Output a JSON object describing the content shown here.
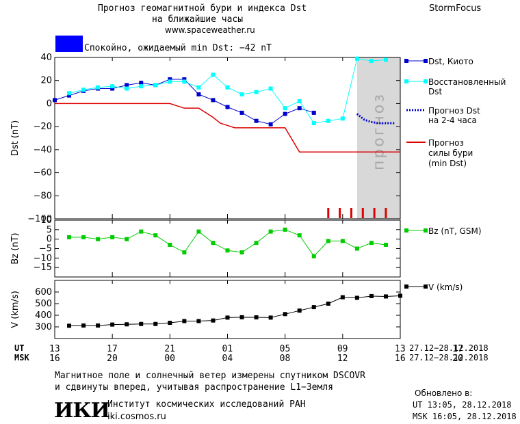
{
  "header": {
    "title_line1": "Прогноз геомагнитной бури и индекса Dst",
    "title_line2": "на ближайшие часы",
    "site": "www.spaceweather.ru",
    "brand": "StormFocus"
  },
  "status": {
    "color": "#0000ff",
    "text": "Спокойно, ожидаемый min Dst: −42 nT"
  },
  "chart_data": [
    {
      "type": "line",
      "name": "dst-panel",
      "ylabel": "Dst (nT)",
      "ylim": [
        -100,
        40
      ],
      "yticks": [
        40,
        20,
        0,
        -20,
        -40,
        -60,
        -80,
        -100
      ],
      "xlim": [
        13,
        37
      ],
      "forecast_region": {
        "x0": 34,
        "x1": 37,
        "label": "прогноз",
        "color": "#d8d8d8"
      },
      "series": [
        {
          "name": "Dst, Киото",
          "color": "#0000cc",
          "style": "line-square",
          "x": [
            13,
            14,
            15,
            16,
            17,
            18,
            19,
            20,
            21,
            22,
            23,
            24,
            25,
            26,
            27,
            28,
            29,
            30,
            31,
            32
          ],
          "y": [
            3,
            7,
            11,
            13,
            13,
            16,
            18,
            16,
            21,
            21,
            8,
            3,
            -3,
            -8,
            -15,
            -18,
            -9,
            -4,
            -8,
            null
          ]
        },
        {
          "name": "Восстановленный Dst",
          "color": "#00ffff",
          "style": "line-square",
          "x": [
            14,
            15,
            16,
            17,
            18,
            19,
            20,
            21,
            22,
            23,
            24,
            25,
            26,
            27,
            28,
            29,
            30,
            31,
            32,
            33,
            34,
            35,
            36
          ],
          "y": [
            9,
            12,
            14,
            15,
            13,
            15,
            16,
            19,
            19,
            14,
            25,
            14,
            8,
            10,
            13,
            -4,
            2,
            -17,
            -15,
            -13,
            39,
            37,
            38
          ]
        },
        {
          "name": "Прогноз Dst на 2-4 часа",
          "color": "#0000cc",
          "style": "dotted",
          "x": [
            34,
            34.5,
            35,
            35.5,
            36,
            36.6
          ],
          "y": [
            -9,
            -14,
            -16,
            -17,
            -17,
            -17
          ]
        },
        {
          "name": "Прогноз силы бури (min Dst)",
          "color": "#dd0000",
          "style": "step",
          "x": [
            13,
            21,
            21.5,
            22,
            23,
            24,
            24.5,
            25,
            25.5,
            27,
            28,
            29,
            30,
            31,
            37
          ],
          "y": [
            0,
            0,
            -2,
            -4,
            -4,
            -12,
            -17,
            -19,
            -21,
            -21,
            -21,
            -21,
            -42,
            -42,
            -42
          ]
        }
      ],
      "markers": {
        "color": "#dd0000",
        "x": [
          32,
          32.8,
          33.6,
          34.4,
          35.2,
          36
        ]
      }
    },
    {
      "type": "line",
      "name": "bz-panel",
      "ylabel": "Bz (nT)",
      "ylim": [
        -20,
        10
      ],
      "yticks": [
        10,
        5,
        0,
        -5,
        -10,
        -15
      ],
      "xlim": [
        13,
        37
      ],
      "series": [
        {
          "name": "Bz (nT, GSM)",
          "color": "#00cc00",
          "style": "line-square",
          "x": [
            14,
            15,
            16,
            17,
            18,
            19,
            20,
            21,
            22,
            23,
            24,
            25,
            26,
            27,
            28,
            29,
            30,
            31,
            32,
            33,
            34,
            35,
            36
          ],
          "y": [
            1,
            1,
            0,
            1,
            0,
            4,
            2,
            -3,
            -7,
            4,
            -2,
            -6,
            -7,
            -2,
            4,
            5,
            2,
            -9,
            -1,
            -1,
            -5,
            -2,
            -3
          ]
        }
      ]
    },
    {
      "type": "line",
      "name": "v-panel",
      "ylabel": "V (km/s)",
      "ylim": [
        200,
        700
      ],
      "yticks": [
        600,
        500,
        400,
        300
      ],
      "xlim": [
        13,
        37
      ],
      "series": [
        {
          "name": "V (km/s)",
          "color": "#000000",
          "style": "line-square",
          "x": [
            14,
            15,
            16,
            17,
            18,
            19,
            20,
            21,
            22,
            23,
            24,
            25,
            26,
            27,
            28,
            29,
            30,
            31,
            32,
            33,
            34,
            35,
            36,
            37
          ],
          "y": [
            310,
            312,
            312,
            320,
            322,
            325,
            325,
            335,
            350,
            350,
            355,
            380,
            383,
            382,
            380,
            410,
            440,
            470,
            500,
            555,
            550,
            565,
            562,
            568
          ]
        }
      ]
    }
  ],
  "time_axis": {
    "ut_label": "UT",
    "msk_label": "MSK",
    "ut_ticks": [
      "13",
      "17",
      "21",
      "01",
      "05",
      "09",
      "13",
      "17"
    ],
    "msk_ticks": [
      "16",
      "20",
      "00",
      "04",
      "08",
      "12",
      "16",
      "20"
    ],
    "range_ut": "27.12−28.12.2018",
    "range_msk": "27.12−28.12.2018"
  },
  "legend": {
    "dst_kyoto": "Dst, Киото",
    "dst_restored_1": "Восстановленный",
    "dst_restored_2": "Dst",
    "dst_forecast_1": "Прогноз Dst",
    "dst_forecast_2": "на 2-4 часа",
    "storm_1": "Прогноз",
    "storm_2": "силы бури",
    "storm_3": "(min Dst)",
    "bz": "Bz (nT, GSM)",
    "v": "V (km/s)"
  },
  "footer": {
    "note_line1": "Магнитное поле и солнечный ветер измерены спутником DSCOVR",
    "note_line2": "и сдвинуты вперед, учитывая распространение L1−Земля",
    "logo": "ИКИ",
    "institute": "Институт космических исследований РАН",
    "institute_site": "iki.cosmos.ru",
    "updated_label": "Обновлено в:",
    "updated_ut": "UT  13:05, 28.12.2018",
    "updated_msk": "MSK 16:05, 28.12.2018"
  }
}
